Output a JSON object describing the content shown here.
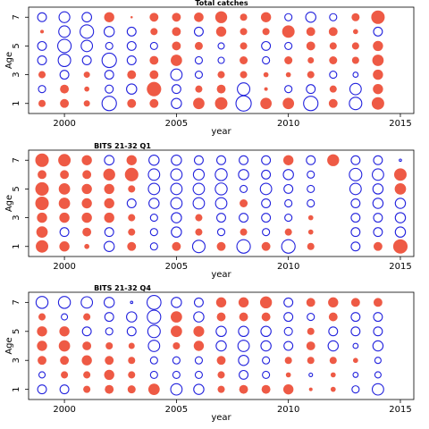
{
  "colors": {
    "positive": "#EE5A45",
    "negative": "#2222DD"
  },
  "chart_data": [
    {
      "type": "scatter",
      "subtype": "bubble",
      "title": "Total catches",
      "xlabel": "year",
      "ylabel": "Age",
      "xticks": [
        2000,
        2005,
        2010,
        2015
      ],
      "yticks": [
        1,
        3,
        5,
        7
      ],
      "xlim": [
        1998.4,
        2015.6
      ],
      "ylim": [
        0.3,
        7.7
      ],
      "years": [
        1999,
        2000,
        2001,
        2002,
        2003,
        2004,
        2005,
        2006,
        2007,
        2008,
        2009,
        2010,
        2011,
        2012,
        2013,
        2014
      ],
      "ages": [
        1,
        2,
        3,
        4,
        5,
        6,
        7
      ],
      "values": [
        [
          0.2,
          0.3,
          0.15,
          -0.8,
          0.3,
          0.3,
          -0.4,
          0.5,
          0.6,
          -0.9,
          0.5,
          0.5,
          -0.8,
          0.3,
          -0.6,
          0.6
        ],
        [
          -0.2,
          0.3,
          0.1,
          -0.25,
          -0.4,
          0.8,
          -0.3,
          0.2,
          0.3,
          -0.6,
          0.05,
          -0.2,
          -0.3,
          0.2,
          -0.5,
          0.4
        ],
        [
          0.2,
          -0.3,
          0.15,
          -0.3,
          0.3,
          0.3,
          -0.5,
          -0.2,
          0.2,
          0.2,
          0.1,
          0.1,
          0.2,
          -0.2,
          -0.1,
          0.4
        ],
        [
          -0.3,
          -0.6,
          -0.3,
          -0.8,
          -0.3,
          0.3,
          0.5,
          -0.2,
          -0.15,
          0.25,
          -0.2,
          0.25,
          0.15,
          0.25,
          0.2,
          0.5
        ],
        [
          -0.3,
          -0.7,
          -0.5,
          -0.2,
          -0.3,
          -0.2,
          0.3,
          0.25,
          -0.15,
          0.2,
          -0.3,
          -0.2,
          0.3,
          0.2,
          0.2,
          0.4
        ],
        [
          0.05,
          -0.5,
          -0.7,
          -0.4,
          -0.3,
          0.2,
          0.3,
          -0.3,
          0.4,
          0.2,
          0.2,
          0.6,
          0.3,
          0.3,
          0.1,
          -0.3
        ],
        [
          -0.3,
          -0.45,
          -0.35,
          0.4,
          0.02,
          0.3,
          0.3,
          0.35,
          0.55,
          0.2,
          0.4,
          -0.2,
          -0.4,
          -0.2,
          0.25,
          0.7
        ]
      ]
    },
    {
      "type": "scatter",
      "subtype": "bubble",
      "title": "BITS 21-32 Q1",
      "xlabel": "year",
      "ylabel": "Age",
      "xticks": [
        2000,
        2005,
        2010,
        2015
      ],
      "yticks": [
        1,
        3,
        5,
        7
      ],
      "xlim": [
        1998.4,
        2015.6
      ],
      "ylim": [
        0.3,
        7.7
      ],
      "years": [
        1999,
        2000,
        2001,
        2002,
        2003,
        2004,
        2005,
        2006,
        2007,
        2008,
        2009,
        2010,
        2011,
        2012,
        2013,
        2014,
        2015
      ],
      "ages": [
        1,
        2,
        3,
        4,
        5,
        6,
        7
      ],
      "values": [
        [
          0.6,
          0.4,
          0.1,
          -0.4,
          0.3,
          -0.2,
          0.3,
          -0.6,
          0.3,
          -0.7,
          0.3,
          -0.7,
          0.2,
          null,
          -0.3,
          0.3,
          0.8
        ],
        [
          0.5,
          -0.3,
          0.3,
          -0.3,
          0.2,
          -0.2,
          -0.4,
          0.2,
          -0.2,
          0.2,
          -0.2,
          0.2,
          0.1,
          null,
          -0.3,
          -0.3,
          -0.4
        ],
        [
          0.4,
          0.4,
          0.4,
          0.4,
          0.2,
          -0.2,
          -0.4,
          0.2,
          -0.3,
          -0.3,
          -0.3,
          -0.2,
          0.1,
          null,
          -0.3,
          -0.3,
          -0.4
        ],
        [
          0.7,
          0.5,
          0.4,
          0.4,
          -0.3,
          -0.4,
          -0.5,
          -0.5,
          -0.5,
          0.25,
          -0.3,
          -0.2,
          -0.2,
          null,
          -0.3,
          -0.4,
          -0.4
        ],
        [
          0.7,
          0.5,
          0.4,
          0.4,
          0.2,
          -0.5,
          -0.5,
          -0.5,
          -0.55,
          -0.2,
          -0.5,
          -0.3,
          -0.2,
          null,
          -0.5,
          -0.4,
          0.5
        ],
        [
          0.3,
          0.3,
          0.3,
          0.55,
          0.7,
          -0.5,
          -0.5,
          -0.45,
          -0.55,
          -0.4,
          -0.3,
          -0.4,
          -0.2,
          null,
          -0.6,
          -0.5,
          0.6
        ],
        [
          0.7,
          0.6,
          0.4,
          -0.35,
          0.4,
          -0.4,
          -0.4,
          -0.3,
          -0.3,
          -0.3,
          -0.3,
          0.4,
          -0.3,
          0.55,
          -0.3,
          -0.3,
          -0.02
        ]
      ]
    },
    {
      "type": "scatter",
      "subtype": "bubble",
      "title": "BITS 21-32 Q4",
      "xlabel": "year",
      "ylabel": "Age",
      "xticks": [
        2000,
        2005,
        2010,
        2015
      ],
      "yticks": [
        1,
        3,
        5,
        7
      ],
      "xlim": [
        1998.4,
        2015.6
      ],
      "ylim": [
        0.3,
        7.7
      ],
      "years": [
        1999,
        2000,
        2001,
        2002,
        2003,
        2004,
        2005,
        2006,
        2007,
        2008,
        2009,
        2010,
        2011,
        2012,
        2013,
        2014
      ],
      "ages": [
        1,
        2,
        3,
        4,
        5,
        6,
        7
      ],
      "values": [
        [
          -0.3,
          -0.3,
          0.2,
          0.3,
          0.25,
          0.5,
          -0.5,
          -0.4,
          0.2,
          0.3,
          0.3,
          0.4,
          0.05,
          0.1,
          -0.2,
          -0.5
        ],
        [
          -0.15,
          0.2,
          0.2,
          0.4,
          0.2,
          -0.2,
          -0.2,
          -0.2,
          0.2,
          -0.3,
          -0.2,
          0.1,
          -0.05,
          0.1,
          -0.1,
          -0.15
        ],
        [
          0.3,
          0.3,
          0.4,
          0.3,
          0.2,
          -0.2,
          -0.2,
          -0.2,
          0.3,
          -0.4,
          -0.2,
          0.2,
          0.2,
          0.2,
          0.1,
          -0.15
        ],
        [
          0.4,
          0.5,
          0.3,
          0.2,
          0.15,
          -0.5,
          0.2,
          0.4,
          -0.4,
          -0.5,
          -0.4,
          -0.3,
          0.3,
          -0.4,
          -0.1,
          -0.4
        ],
        [
          0.4,
          0.4,
          -0.3,
          -0.2,
          -0.3,
          -0.6,
          0.5,
          0.45,
          -0.4,
          -0.4,
          -0.4,
          -0.25,
          0.2,
          -0.3,
          -0.3,
          -0.3
        ],
        [
          0.2,
          -0.15,
          0.2,
          -0.3,
          -0.4,
          -0.7,
          0.5,
          -0.4,
          0.3,
          0.3,
          0.3,
          -0.3,
          -0.2,
          0.3,
          -0.3,
          -0.3
        ],
        [
          -0.55,
          -0.55,
          -0.5,
          -0.4,
          -0.02,
          -0.75,
          -0.4,
          -0.3,
          0.4,
          0.4,
          0.55,
          -0.3,
          0.3,
          0.4,
          0.3,
          0.3
        ]
      ]
    }
  ]
}
